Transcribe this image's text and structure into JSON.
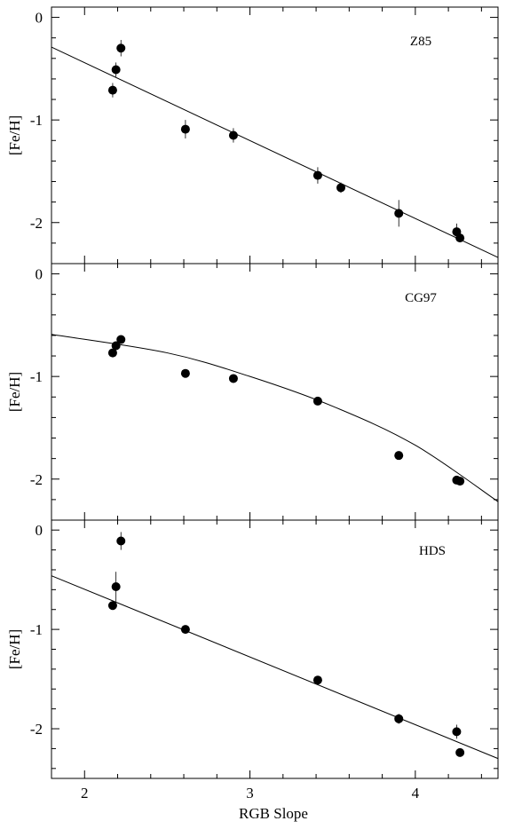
{
  "chart_data": {
    "type": "scatter",
    "xlabel": "RGB Slope",
    "ylabel": "[Fe/H]",
    "xlim": [
      1.8,
      4.5
    ],
    "x_ticks": [
      2,
      3,
      4
    ],
    "x_tick_labels": [
      "2",
      "3",
      "4"
    ],
    "panels": [
      {
        "label": "Z85",
        "ylim": [
          -2.4,
          0.1
        ],
        "y_ticks": [
          0,
          -1,
          -2
        ],
        "y_tick_labels": [
          "0",
          "-1",
          "-2"
        ],
        "points": [
          {
            "x": 2.17,
            "y": -0.71,
            "err": 0.07
          },
          {
            "x": 2.19,
            "y": -0.51,
            "err": 0.07
          },
          {
            "x": 2.22,
            "y": -0.3,
            "err": 0.08
          },
          {
            "x": 2.61,
            "y": -1.09,
            "err": 0.09
          },
          {
            "x": 2.9,
            "y": -1.15,
            "err": 0.07
          },
          {
            "x": 3.41,
            "y": -1.54,
            "err": 0.08
          },
          {
            "x": 3.55,
            "y": -1.66,
            "err": 0.05
          },
          {
            "x": 3.9,
            "y": -1.91,
            "err": 0.13
          },
          {
            "x": 4.25,
            "y": -2.09,
            "err": 0.08
          },
          {
            "x": 4.27,
            "y": -2.15,
            "err": 0.04
          }
        ],
        "fit": {
          "kind": "linear",
          "x": [
            1.8,
            4.5
          ],
          "y": [
            -0.29,
            -2.34
          ]
        }
      },
      {
        "label": "CG97",
        "ylim": [
          -2.4,
          0.1
        ],
        "y_ticks": [
          0,
          -1,
          -2
        ],
        "y_tick_labels": [
          "0",
          "-1",
          "-2"
        ],
        "points": [
          {
            "x": 2.17,
            "y": -0.77,
            "err": 0.03
          },
          {
            "x": 2.19,
            "y": -0.7,
            "err": 0.03
          },
          {
            "x": 2.22,
            "y": -0.64,
            "err": 0.03
          },
          {
            "x": 2.61,
            "y": -0.97,
            "err": 0.03
          },
          {
            "x": 2.9,
            "y": -1.02,
            "err": 0.03
          },
          {
            "x": 3.41,
            "y": -1.24,
            "err": 0.03
          },
          {
            "x": 3.9,
            "y": -1.77,
            "err": 0.03
          },
          {
            "x": 4.25,
            "y": -2.01,
            "err": 0.03
          },
          {
            "x": 4.27,
            "y": -2.02,
            "err": 0.03
          }
        ],
        "fit": {
          "kind": "quadratic",
          "x": [
            1.8,
            2.5,
            3.0,
            3.5,
            4.0,
            4.5
          ],
          "y": [
            -0.59,
            -0.77,
            -1.0,
            -1.29,
            -1.67,
            -2.22
          ]
        }
      },
      {
        "label": "HDS",
        "ylim": [
          -2.5,
          0.1
        ],
        "y_ticks": [
          0,
          -1,
          -2
        ],
        "y_tick_labels": [
          "0",
          "-1",
          "-2"
        ],
        "points": [
          {
            "x": 2.17,
            "y": -0.76,
            "err": 0.03
          },
          {
            "x": 2.19,
            "y": -0.57,
            "err": 0.15
          },
          {
            "x": 2.22,
            "y": -0.11,
            "err": 0.09
          },
          {
            "x": 2.61,
            "y": -1.0,
            "err": 0.03
          },
          {
            "x": 3.41,
            "y": -1.51,
            "err": 0.03
          },
          {
            "x": 3.9,
            "y": -1.9,
            "err": 0.05
          },
          {
            "x": 4.25,
            "y": -2.03,
            "err": 0.07
          },
          {
            "x": 4.27,
            "y": -2.24,
            "err": 0.03
          }
        ],
        "fit": {
          "kind": "linear",
          "x": [
            1.8,
            4.5
          ],
          "y": [
            -0.46,
            -2.3
          ]
        }
      }
    ]
  }
}
